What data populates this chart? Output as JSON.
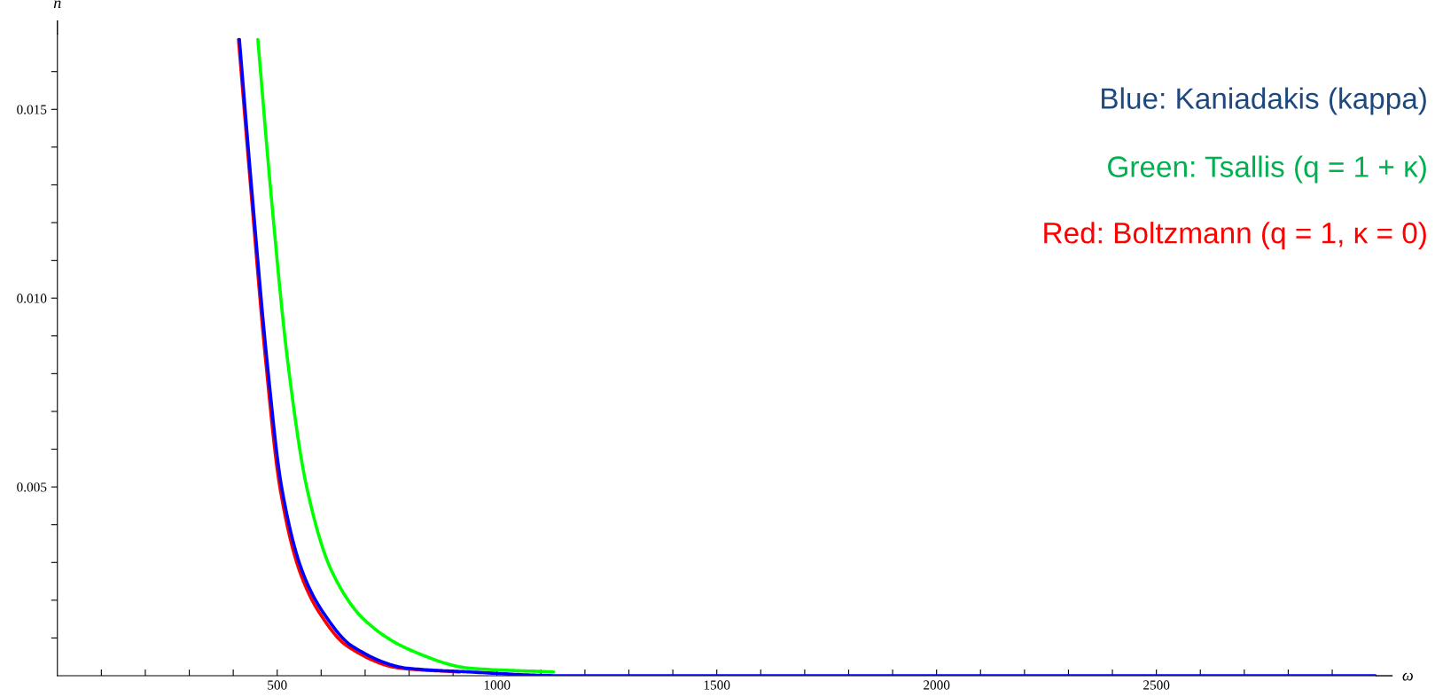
{
  "chart_data": {
    "type": "line",
    "xlabel": "ω",
    "ylabel": "n",
    "annotations": [
      "Blue: Kaniadakis (kappa)",
      "Green: Tsallis (q = 1 + κ)",
      "Red: Boltzmann (q = 1, κ = 0)"
    ],
    "series": [
      {
        "color": "#ff0000",
        "x": [
          412,
          441,
          474,
          506,
          551,
          596,
          660,
          780,
          915
        ],
        "values": [
          0.01685,
          0.01275,
          0.00832,
          0.005,
          0.00277,
          0.00167,
          0.00078,
          0.0002,
          0.0001
        ]
      },
      {
        "color": "#00ff00",
        "x": [
          456,
          486,
          524,
          567,
          624,
          701,
          805,
          938,
          1129
        ],
        "values": [
          0.01685,
          0.01275,
          0.00832,
          0.005,
          0.00277,
          0.00145,
          0.00067,
          0.0002,
          0.0001
        ]
      },
      {
        "color": "#0000ff",
        "x": [
          414,
          443,
          477,
          510,
          557,
          605,
          671,
          796,
          938,
          1150,
          1500,
          2000,
          2500,
          3000
        ],
        "values": [
          0.01685,
          0.01275,
          0.00832,
          0.005,
          0.00277,
          0.00167,
          0.00078,
          0.0002,
          0.0001,
          0,
          0,
          0,
          0,
          0
        ]
      }
    ],
    "xlim": [
      0,
      3000
    ],
    "ylim": [
      0,
      0.017
    ],
    "xticks": [
      {
        "value": 100,
        "label": null
      },
      {
        "value": 200,
        "label": null
      },
      {
        "value": 300,
        "label": null
      },
      {
        "value": 400,
        "label": null
      },
      500,
      {
        "value": 600,
        "label": null
      },
      {
        "value": 700,
        "label": null
      },
      {
        "value": 800,
        "label": null
      },
      {
        "value": 900,
        "label": null
      },
      1000,
      {
        "value": 1100,
        "label": null
      },
      {
        "value": 1200,
        "label": null
      },
      {
        "value": 1300,
        "label": null
      },
      {
        "value": 1400,
        "label": null
      },
      1500,
      {
        "value": 1600,
        "label": null
      },
      {
        "value": 1700,
        "label": null
      },
      {
        "value": 1800,
        "label": null
      },
      {
        "value": 1900,
        "label": null
      },
      2000,
      {
        "value": 2100,
        "label": null
      },
      {
        "value": 2200,
        "label": null
      },
      {
        "value": 2300,
        "label": null
      },
      {
        "value": 2400,
        "label": null
      },
      2500,
      {
        "value": 2600,
        "label": null
      },
      {
        "value": 2700,
        "label": null
      },
      {
        "value": 2800,
        "label": null
      },
      {
        "value": 2900,
        "label": null
      }
    ],
    "yticks": [
      {
        "value": 0.001,
        "label": null
      },
      {
        "value": 0.002,
        "label": null
      },
      {
        "value": 0.003,
        "label": null
      },
      {
        "value": 0.004,
        "label": null
      },
      {
        "value": 0.005,
        "label": "0.005"
      },
      {
        "value": 0.006,
        "label": null
      },
      {
        "value": 0.007,
        "label": null
      },
      {
        "value": 0.008,
        "label": null
      },
      {
        "value": 0.009,
        "label": null
      },
      {
        "value": 0.01,
        "label": "0.010"
      },
      {
        "value": 0.011,
        "label": null
      },
      {
        "value": 0.012,
        "label": null
      },
      {
        "value": 0.013,
        "label": null
      },
      {
        "value": 0.014,
        "label": null
      },
      {
        "value": 0.015,
        "label": "0.015"
      },
      {
        "value": 0.016,
        "label": null
      }
    ],
    "grid": false,
    "legend": false,
    "marker": "none",
    "line_style": "solid"
  }
}
